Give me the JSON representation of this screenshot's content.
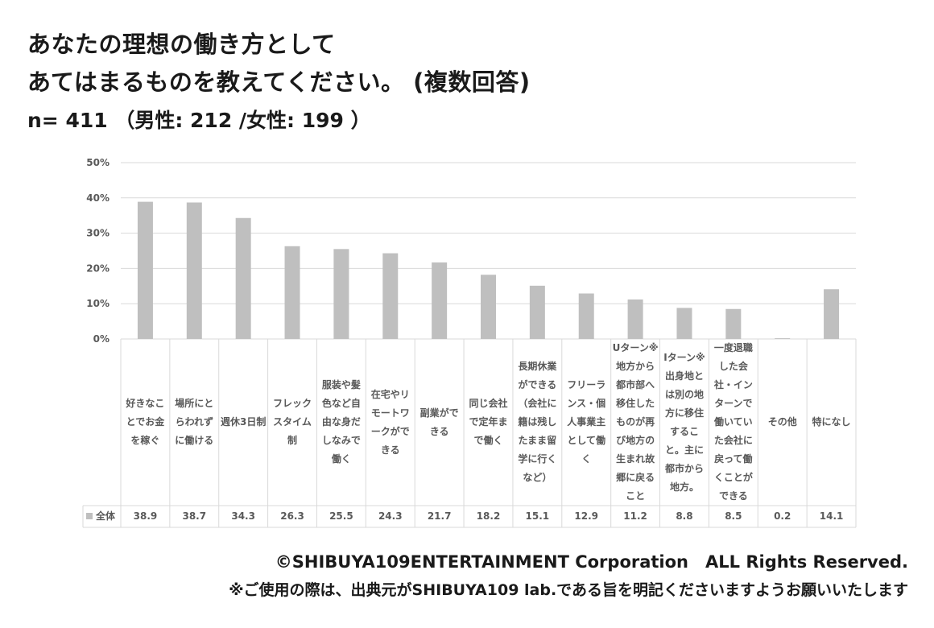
{
  "header": {
    "title_line1": "あなたの理想の働き方として",
    "title_line2": "あてはまるものを教えてください。 (複数回答)",
    "sample": "n= 411 （男性: 212 /女性: 199 ）"
  },
  "footer": {
    "copyright": "©SHIBUYA109ENTERTAINMENT Corporation　ALL Rights Reserved.",
    "note": "※ご使用の際は、出典元がSHIBUYA109 lab.である旨を明記くださいますようお願いいたします"
  },
  "chart_data": {
    "type": "bar",
    "ylim": [
      0,
      50
    ],
    "yticks": [
      "0%",
      "10%",
      "20%",
      "30%",
      "40%",
      "50%"
    ],
    "grid": true,
    "categories": [
      "好きなことでお金を稼ぐ",
      "場所にとらわれずに働ける",
      "週休3日制",
      "フレックスタイム制",
      "服装や髪色など自由な身だしなみで働く",
      "在宅やリモートワークができる",
      "副業ができる",
      "同じ会社で定年まで働く",
      "長期休業ができる（会社に籍は残したまま留学に行くなど）",
      "フリーランス・個人事業主として働く",
      "Uターン※地方から都市部へ移住したものが再び地方の生まれ故郷に戻ること",
      "Iターン※出身地とは別の地方に移住すること。主に都市から地方。",
      "一度退職した会社・インターンで働いていた会社に戻って働くことができる",
      "その他",
      "特になし"
    ],
    "series": [
      {
        "name": "全体",
        "values": [
          38.9,
          38.7,
          34.3,
          26.3,
          25.5,
          24.3,
          21.7,
          18.2,
          15.1,
          12.9,
          11.2,
          8.8,
          8.5,
          0.2,
          14.1
        ],
        "labels": [
          "38.9",
          "38.7",
          "34.3",
          "26.3",
          "25.5",
          "24.3",
          "21.7",
          "18.2",
          "15.1",
          "12.9",
          "11.2",
          "8.8",
          "8.5",
          "0.2",
          "14.1"
        ]
      }
    ],
    "colors": {
      "bar": "#bfbfbf",
      "grid": "#d9d9d9",
      "table_border": "#d9d9d9"
    }
  }
}
